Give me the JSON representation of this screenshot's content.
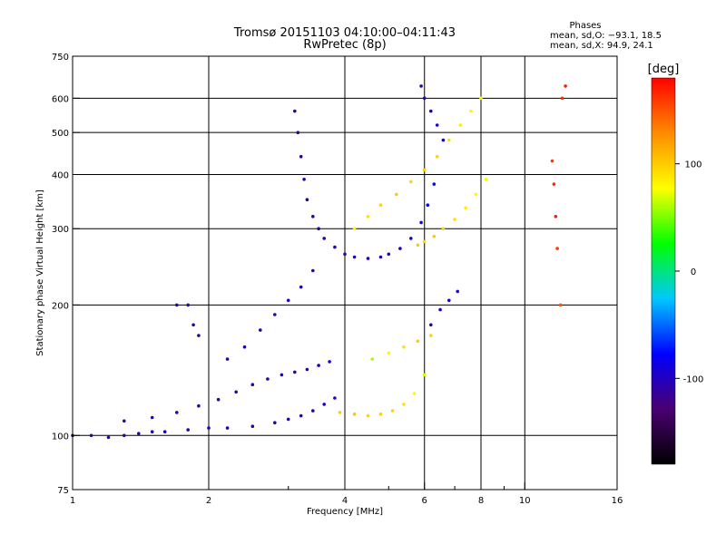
{
  "chart_data": {
    "type": "scatter",
    "title": "Tromsø 20151103 04:10:00–04:11:43",
    "subtitle": "RwPretec (8p)",
    "legend": {
      "heading": "Phases",
      "lines": [
        "mean, sd,O: −93.1, 18.5",
        "mean, sd,X:  94.9, 24.1"
      ]
    },
    "xlabel": "Frequency [MHz]",
    "ylabel": "Stationary phase Virtual Height [km]",
    "x_scale": "log",
    "y_scale": "log",
    "xlim": [
      1,
      16
    ],
    "ylim": [
      75,
      750
    ],
    "xticks": [
      1,
      2,
      4,
      6,
      8,
      10,
      16
    ],
    "yticks": [
      75,
      100,
      200,
      300,
      400,
      500,
      600,
      750
    ],
    "x_minor_ticks": [
      3,
      5,
      7,
      9
    ],
    "grid": true,
    "colorbar": {
      "label": "[deg]",
      "min": -180,
      "max": 180,
      "ticks": [
        100,
        0,
        -100
      ],
      "colors": [
        "#000000",
        "#4a0070",
        "#0000ff",
        "#00c8ff",
        "#00ff00",
        "#ffff00",
        "#ff8c00",
        "#ff0000"
      ]
    },
    "series": [
      {
        "values": [
          [
            1.0,
            100,
            -100
          ],
          [
            1.1,
            100,
            -110
          ],
          [
            1.2,
            99,
            -105
          ],
          [
            1.3,
            100,
            -100
          ],
          [
            1.4,
            101,
            -105
          ],
          [
            1.5,
            102,
            -100
          ],
          [
            1.6,
            102,
            -95
          ],
          [
            1.8,
            103,
            -100
          ],
          [
            2.0,
            104,
            -105
          ],
          [
            2.2,
            104,
            -100
          ],
          [
            2.5,
            105,
            -95
          ],
          [
            2.8,
            107,
            -100
          ],
          [
            3.0,
            109,
            -100
          ],
          [
            3.2,
            111,
            -105
          ],
          [
            3.4,
            114,
            -100
          ],
          [
            3.6,
            118,
            -100
          ],
          [
            3.8,
            122,
            -90
          ]
        ]
      },
      {
        "values": [
          [
            1.3,
            108,
            -110
          ],
          [
            1.5,
            110,
            -110
          ],
          [
            1.7,
            113,
            -105
          ],
          [
            1.9,
            117,
            -110
          ],
          [
            2.1,
            121,
            -105
          ],
          [
            2.3,
            126,
            -105
          ],
          [
            2.5,
            131,
            -100
          ],
          [
            2.7,
            135,
            -100
          ],
          [
            2.9,
            138,
            -100
          ],
          [
            3.1,
            140,
            -100
          ],
          [
            3.3,
            142,
            -100
          ],
          [
            3.5,
            145,
            -95
          ],
          [
            3.7,
            148,
            -95
          ]
        ]
      },
      {
        "values": [
          [
            3.1,
            560,
            -110
          ],
          [
            3.15,
            500,
            -105
          ],
          [
            3.2,
            440,
            -110
          ],
          [
            3.25,
            390,
            -105
          ],
          [
            3.3,
            350,
            -110
          ],
          [
            3.4,
            320,
            -105
          ],
          [
            3.5,
            300,
            -100
          ],
          [
            3.6,
            285,
            -105
          ],
          [
            3.8,
            272,
            -100
          ],
          [
            4.0,
            262,
            -105
          ],
          [
            4.2,
            258,
            -100
          ],
          [
            4.5,
            256,
            -105
          ],
          [
            4.8,
            258,
            -100
          ],
          [
            5.0,
            262,
            -100
          ],
          [
            5.3,
            270,
            -95
          ],
          [
            5.6,
            285,
            -90
          ],
          [
            5.9,
            310,
            -85
          ],
          [
            6.1,
            340,
            -80
          ],
          [
            6.3,
            380,
            -75
          ]
        ]
      },
      {
        "values": [
          [
            4.2,
            300,
            80
          ],
          [
            4.5,
            320,
            90
          ],
          [
            4.8,
            340,
            95
          ],
          [
            5.2,
            360,
            100
          ],
          [
            5.6,
            385,
            95
          ],
          [
            6.0,
            410,
            100
          ],
          [
            6.4,
            440,
            95
          ],
          [
            6.8,
            480,
            90
          ],
          [
            7.2,
            520,
            85
          ],
          [
            7.6,
            560,
            80
          ],
          [
            8.0,
            600,
            75
          ]
        ]
      },
      {
        "values": [
          [
            5.8,
            275,
            100
          ],
          [
            6.0,
            280,
            95
          ],
          [
            6.3,
            288,
            100
          ],
          [
            6.6,
            300,
            95
          ],
          [
            7.0,
            315,
            90
          ],
          [
            7.4,
            335,
            85
          ],
          [
            7.8,
            360,
            80
          ],
          [
            8.2,
            390,
            75
          ]
        ]
      },
      {
        "values": [
          [
            3.9,
            113,
            100
          ],
          [
            4.2,
            112,
            105
          ],
          [
            4.5,
            111,
            95
          ],
          [
            4.8,
            112,
            100
          ],
          [
            5.1,
            114,
            95
          ],
          [
            5.4,
            118,
            90
          ],
          [
            5.7,
            125,
            80
          ],
          [
            6.0,
            138,
            70
          ]
        ]
      },
      {
        "values": [
          [
            6.2,
            180,
            -100
          ],
          [
            6.5,
            195,
            -105
          ],
          [
            6.8,
            205,
            -100
          ],
          [
            7.1,
            215,
            -95
          ]
        ]
      },
      {
        "values": [
          [
            1.7,
            200,
            -105
          ],
          [
            1.8,
            200,
            -110
          ],
          [
            1.85,
            180,
            -105
          ],
          [
            1.9,
            170,
            -110
          ]
        ]
      },
      {
        "values": [
          [
            5.9,
            640,
            -100
          ],
          [
            6.0,
            600,
            -105
          ],
          [
            6.2,
            560,
            -100
          ],
          [
            6.4,
            520,
            -95
          ],
          [
            6.6,
            480,
            -90
          ]
        ]
      },
      {
        "values": [
          [
            11.5,
            430,
            160
          ],
          [
            11.6,
            380,
            165
          ],
          [
            11.7,
            320,
            170
          ],
          [
            11.8,
            270,
            160
          ],
          [
            12.0,
            200,
            150
          ],
          [
            12.1,
            600,
            165
          ],
          [
            12.3,
            640,
            170
          ]
        ]
      },
      {
        "values": [
          [
            2.2,
            150,
            -100
          ],
          [
            2.4,
            160,
            -95
          ],
          [
            2.6,
            175,
            -100
          ],
          [
            2.8,
            190,
            -105
          ],
          [
            3.0,
            205,
            -100
          ],
          [
            3.2,
            220,
            -95
          ],
          [
            3.4,
            240,
            -100
          ]
        ]
      },
      {
        "values": [
          [
            4.6,
            150,
            60
          ],
          [
            5.0,
            155,
            80
          ],
          [
            5.4,
            160,
            90
          ],
          [
            5.8,
            165,
            100
          ],
          [
            6.2,
            170,
            95
          ]
        ]
      }
    ]
  }
}
